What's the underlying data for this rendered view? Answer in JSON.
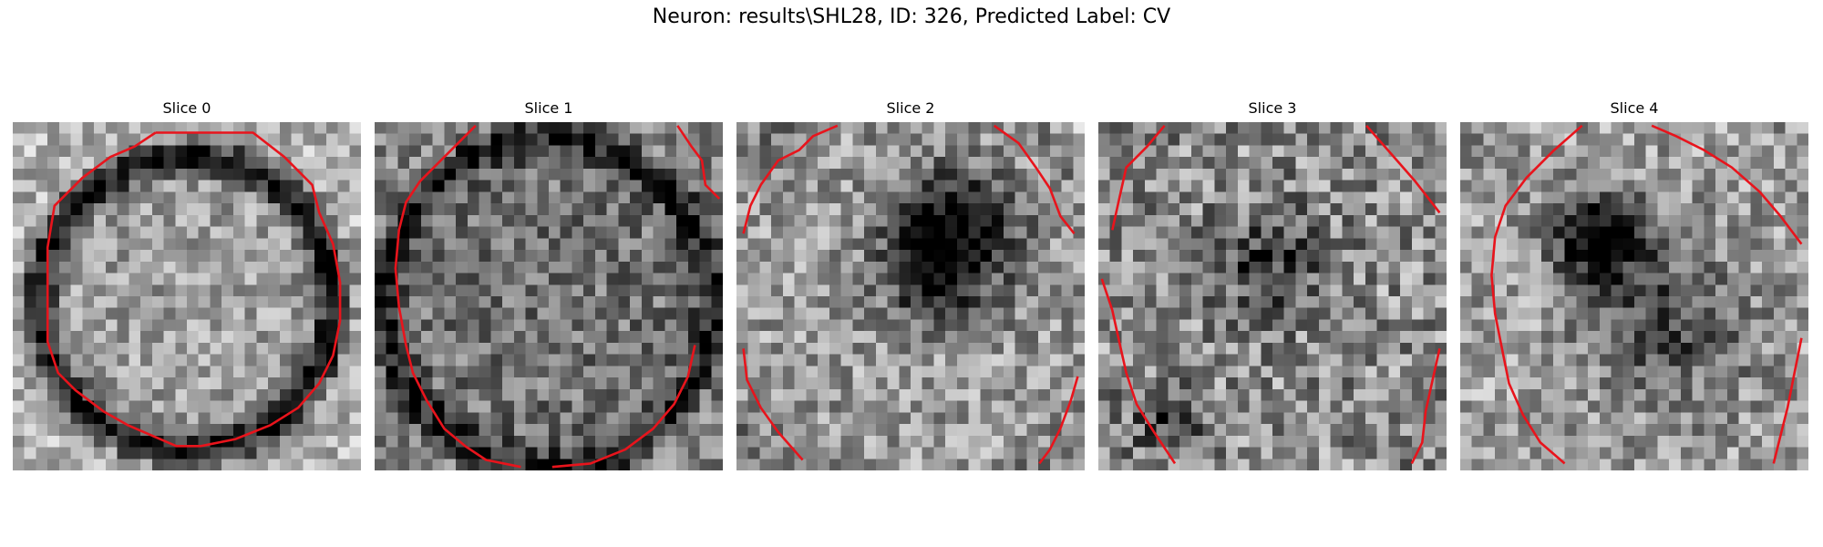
{
  "figure": {
    "title": "Neuron: results\\SHL28, ID: 326, Predicted Label: CV"
  },
  "colors": {
    "contour": "#e8141c",
    "colormap": "gray"
  },
  "panels": [
    {
      "title": "Slice 0",
      "pattern": {
        "ring_center": [
          0.5,
          0.52
        ],
        "ring_radius": 0.42,
        "ring_depth": 0.55,
        "interior_level": 0.62,
        "dark_spots": [],
        "noise": 0.22,
        "seed": 11
      },
      "contour": [
        [
          [
            0.41,
            0.03
          ],
          [
            0.69,
            0.03
          ],
          [
            0.78,
            0.1
          ],
          [
            0.86,
            0.18
          ],
          [
            0.88,
            0.26
          ],
          [
            0.92,
            0.35
          ],
          [
            0.94,
            0.46
          ],
          [
            0.94,
            0.57
          ],
          [
            0.92,
            0.67
          ],
          [
            0.88,
            0.75
          ],
          [
            0.82,
            0.82
          ],
          [
            0.74,
            0.87
          ],
          [
            0.64,
            0.91
          ],
          [
            0.54,
            0.93
          ],
          [
            0.47,
            0.93
          ],
          [
            0.4,
            0.9
          ],
          [
            0.33,
            0.87
          ],
          [
            0.26,
            0.83
          ],
          [
            0.18,
            0.77
          ],
          [
            0.13,
            0.72
          ],
          [
            0.1,
            0.63
          ],
          [
            0.1,
            0.54
          ],
          [
            0.1,
            0.44
          ],
          [
            0.1,
            0.36
          ],
          [
            0.12,
            0.24
          ],
          [
            0.2,
            0.16
          ],
          [
            0.28,
            0.1
          ],
          [
            0.35,
            0.07
          ],
          [
            0.41,
            0.03
          ]
        ]
      ]
    },
    {
      "title": "Slice 1",
      "pattern": {
        "ring_center": [
          0.5,
          0.52
        ],
        "ring_radius": 0.47,
        "ring_depth": 0.35,
        "interior_level": 0.45,
        "dark_spots": [],
        "noise": 0.24,
        "seed": 23
      },
      "contour": [
        [
          [
            0.29,
            0.01
          ],
          [
            0.2,
            0.1
          ],
          [
            0.13,
            0.17
          ],
          [
            0.09,
            0.23
          ],
          [
            0.07,
            0.31
          ],
          [
            0.06,
            0.42
          ],
          [
            0.07,
            0.53
          ],
          [
            0.09,
            0.64
          ],
          [
            0.11,
            0.72
          ],
          [
            0.15,
            0.8
          ],
          [
            0.2,
            0.88
          ],
          [
            0.26,
            0.93
          ],
          [
            0.32,
            0.97
          ],
          [
            0.42,
            0.99
          ]
        ],
        [
          [
            0.51,
            0.99
          ],
          [
            0.62,
            0.98
          ],
          [
            0.72,
            0.94
          ],
          [
            0.8,
            0.88
          ],
          [
            0.86,
            0.81
          ],
          [
            0.9,
            0.73
          ],
          [
            0.92,
            0.64
          ]
        ],
        [
          [
            0.87,
            0.01
          ],
          [
            0.91,
            0.07
          ],
          [
            0.94,
            0.11
          ],
          [
            0.95,
            0.18
          ],
          [
            0.99,
            0.22
          ]
        ]
      ]
    },
    {
      "title": "Slice 2",
      "pattern": {
        "ring_center": [
          0.5,
          0.5
        ],
        "ring_radius": 0.6,
        "ring_depth": 0.1,
        "interior_level": 0.6,
        "dark_spots": [
          [
            0.62,
            0.33,
            0.18,
            0.65
          ],
          [
            0.55,
            0.45,
            0.12,
            0.3
          ]
        ],
        "noise": 0.25,
        "seed": 37
      },
      "contour": [
        [
          [
            0.29,
            0.01
          ],
          [
            0.22,
            0.04
          ],
          [
            0.18,
            0.08
          ],
          [
            0.12,
            0.11
          ],
          [
            0.07,
            0.18
          ],
          [
            0.04,
            0.24
          ],
          [
            0.02,
            0.32
          ]
        ],
        [
          [
            0.74,
            0.01
          ],
          [
            0.81,
            0.06
          ],
          [
            0.86,
            0.13
          ],
          [
            0.9,
            0.19
          ],
          [
            0.93,
            0.27
          ],
          [
            0.97,
            0.32
          ]
        ],
        [
          [
            0.02,
            0.65
          ],
          [
            0.03,
            0.74
          ],
          [
            0.07,
            0.82
          ],
          [
            0.12,
            0.89
          ],
          [
            0.19,
            0.97
          ]
        ],
        [
          [
            0.98,
            0.73
          ],
          [
            0.96,
            0.8
          ],
          [
            0.93,
            0.88
          ],
          [
            0.9,
            0.94
          ],
          [
            0.87,
            0.98
          ]
        ]
      ]
    },
    {
      "title": "Slice 3",
      "pattern": {
        "ring_center": [
          0.5,
          0.5
        ],
        "ring_radius": 0.7,
        "ring_depth": 0.05,
        "interior_level": 0.55,
        "dark_spots": [
          [
            0.5,
            0.4,
            0.15,
            0.35
          ],
          [
            0.2,
            0.85,
            0.1,
            0.35
          ]
        ],
        "noise": 0.3,
        "seed": 53
      },
      "contour": [
        [
          [
            0.19,
            0.01
          ],
          [
            0.14,
            0.07
          ],
          [
            0.08,
            0.13
          ],
          [
            0.06,
            0.22
          ],
          [
            0.04,
            0.31
          ]
        ],
        [
          [
            0.77,
            0.01
          ],
          [
            0.84,
            0.09
          ],
          [
            0.91,
            0.17
          ],
          [
            0.98,
            0.26
          ]
        ],
        [
          [
            0.01,
            0.45
          ],
          [
            0.04,
            0.54
          ],
          [
            0.06,
            0.63
          ],
          [
            0.08,
            0.72
          ],
          [
            0.11,
            0.81
          ],
          [
            0.16,
            0.89
          ],
          [
            0.22,
            0.98
          ]
        ],
        [
          [
            0.98,
            0.65
          ],
          [
            0.96,
            0.74
          ],
          [
            0.94,
            0.83
          ],
          [
            0.93,
            0.92
          ],
          [
            0.9,
            0.98
          ]
        ]
      ]
    },
    {
      "title": "Slice 4",
      "pattern": {
        "ring_center": [
          0.5,
          0.5
        ],
        "ring_radius": 0.65,
        "ring_depth": 0.05,
        "interior_level": 0.62,
        "dark_spots": [
          [
            0.4,
            0.33,
            0.13,
            0.7
          ],
          [
            0.6,
            0.58,
            0.22,
            0.35
          ]
        ],
        "noise": 0.25,
        "seed": 71
      },
      "contour": [
        [
          [
            0.35,
            0.01
          ],
          [
            0.27,
            0.08
          ],
          [
            0.19,
            0.16
          ],
          [
            0.13,
            0.24
          ],
          [
            0.1,
            0.33
          ],
          [
            0.09,
            0.44
          ],
          [
            0.1,
            0.55
          ],
          [
            0.12,
            0.65
          ],
          [
            0.14,
            0.75
          ],
          [
            0.18,
            0.84
          ],
          [
            0.23,
            0.92
          ],
          [
            0.3,
            0.98
          ]
        ],
        [
          [
            0.55,
            0.01
          ],
          [
            0.62,
            0.04
          ],
          [
            0.7,
            0.08
          ],
          [
            0.78,
            0.13
          ],
          [
            0.86,
            0.2
          ],
          [
            0.92,
            0.27
          ],
          [
            0.98,
            0.35
          ]
        ],
        [
          [
            0.98,
            0.62
          ],
          [
            0.96,
            0.72
          ],
          [
            0.94,
            0.82
          ],
          [
            0.92,
            0.9
          ],
          [
            0.9,
            0.98
          ]
        ]
      ]
    }
  ]
}
